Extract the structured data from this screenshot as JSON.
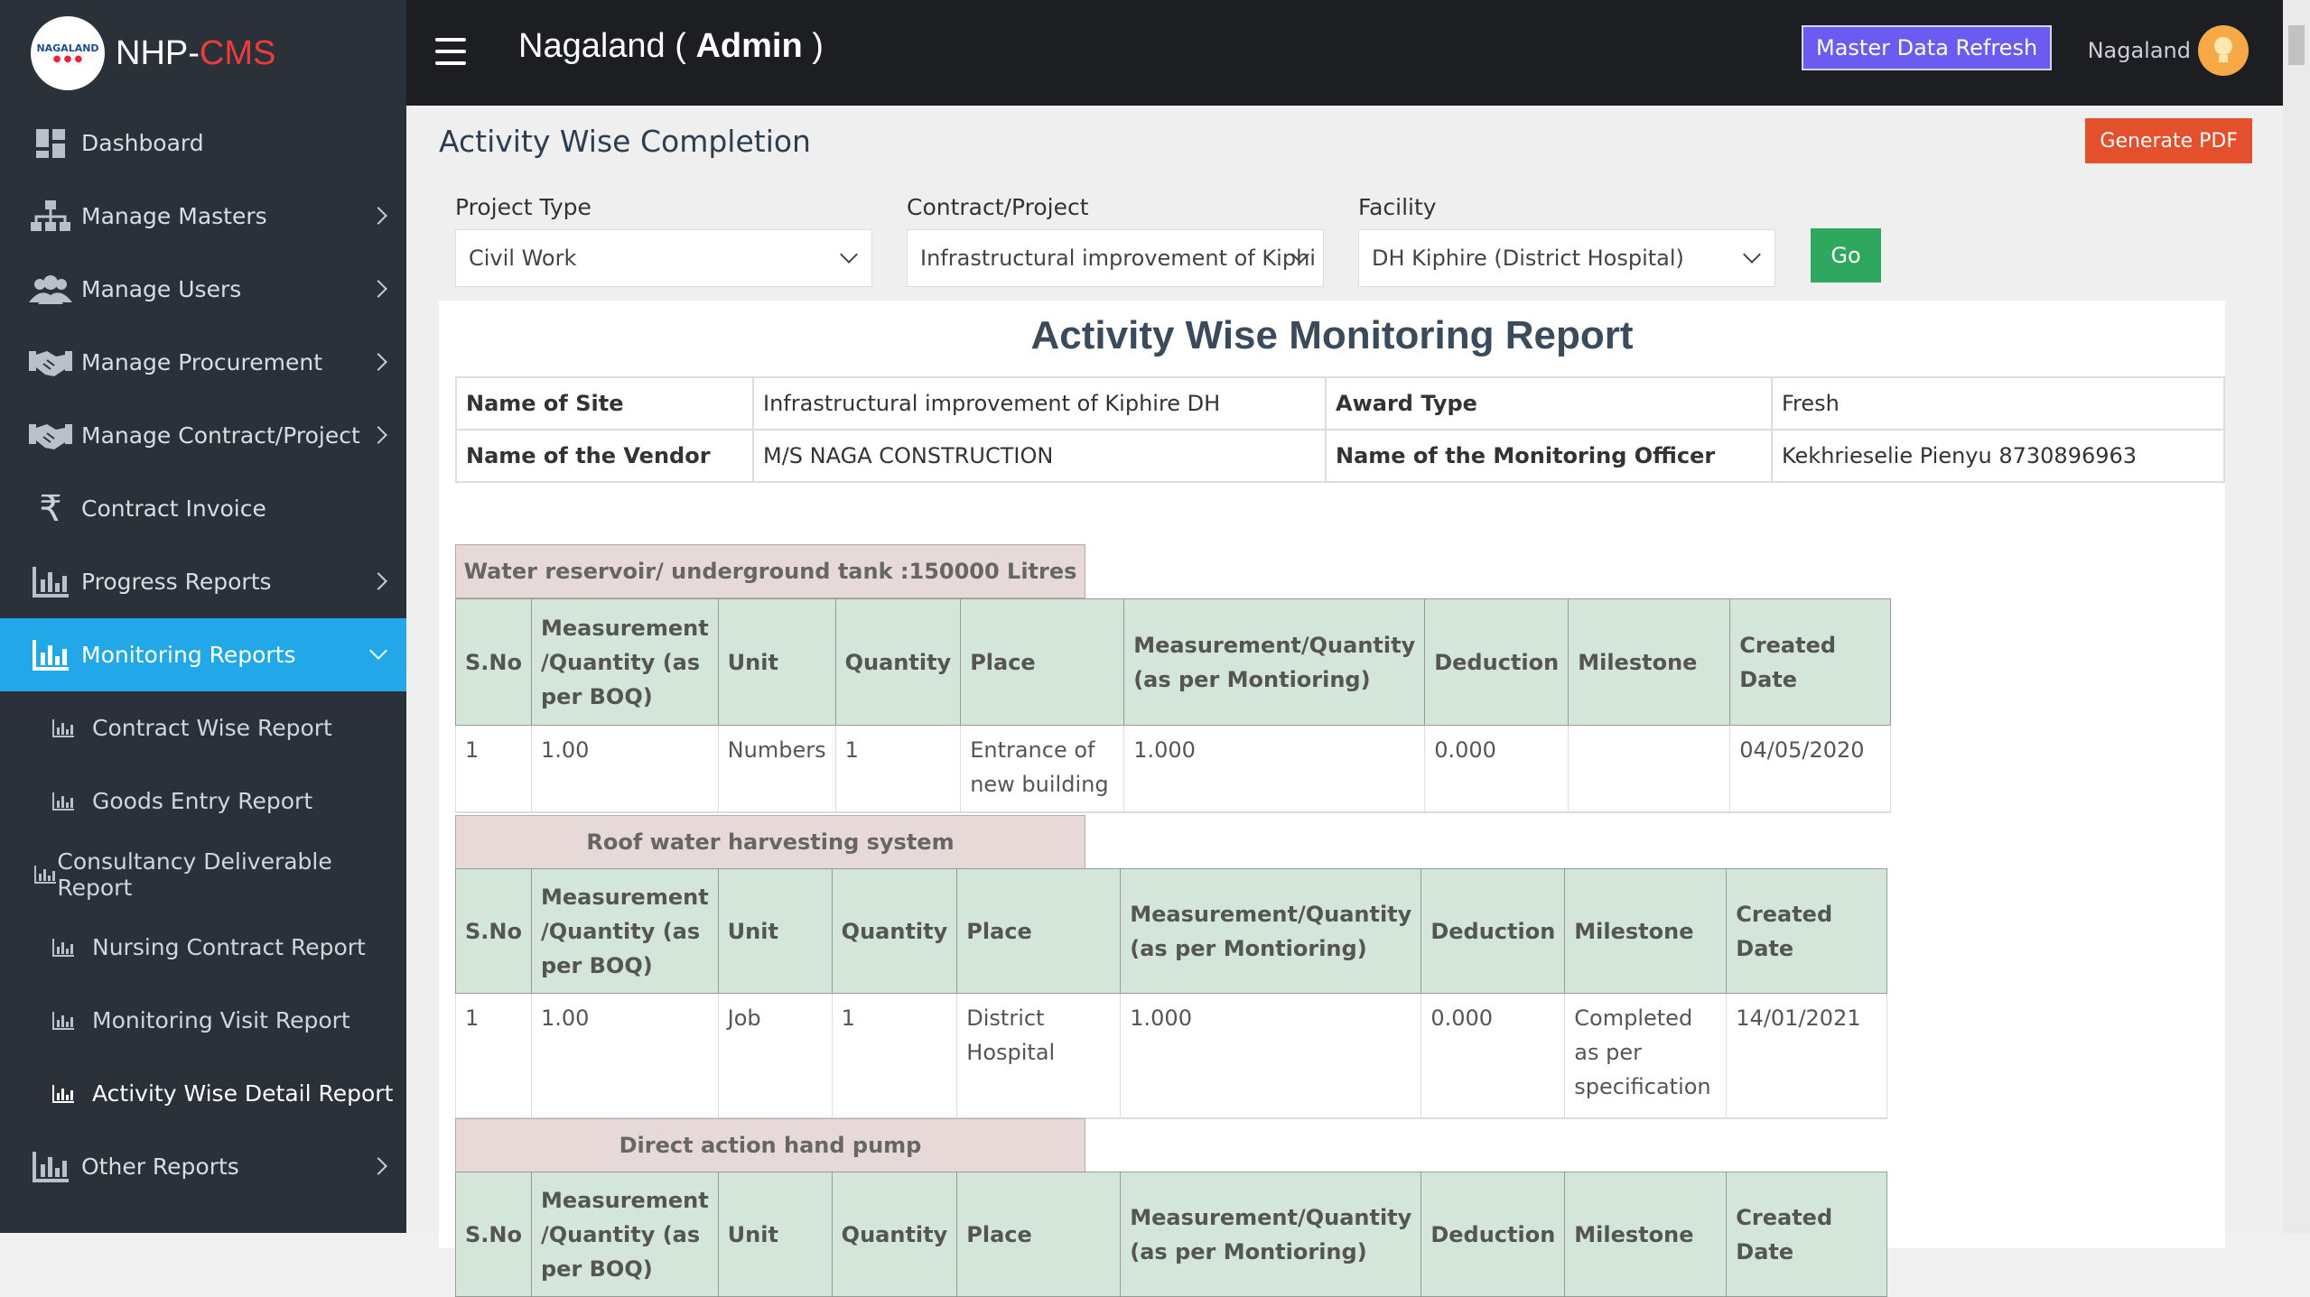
{
  "sidebar": {
    "brand_prefix": "NHP-",
    "brand_accent": "CMS",
    "logo_text": "NAGALAND",
    "items": [
      {
        "label": "Dashboard",
        "icon": "dashboard-icon"
      },
      {
        "label": "Manage Masters",
        "icon": "sitemap-icon"
      },
      {
        "label": "Manage Users",
        "icon": "users-icon"
      },
      {
        "label": "Manage Procurement",
        "icon": "handshake-icon"
      },
      {
        "label": "Manage Contract/Project",
        "icon": "handshake-icon"
      },
      {
        "label": "Contract Invoice",
        "icon": "rupee-icon"
      },
      {
        "label": "Progress Reports",
        "icon": "bar-chart-icon"
      },
      {
        "label": "Monitoring Reports",
        "icon": "bar-chart-icon"
      }
    ],
    "sub_items": [
      {
        "label": "Contract Wise Report"
      },
      {
        "label": "Goods Entry Report"
      },
      {
        "label": "Consultancy Deliverable Report"
      },
      {
        "label": "Nursing Contract Report"
      },
      {
        "label": "Monitoring Visit Report"
      },
      {
        "label": "Activity Wise Detail Report"
      }
    ],
    "other": {
      "label": "Other Reports"
    }
  },
  "topbar": {
    "title_state": "Nagaland ( ",
    "title_role": "Admin",
    "title_end": " )",
    "refresh_label": "Master Data Refresh",
    "user_name": "Nagaland"
  },
  "page": {
    "title": "Activity Wise Completion",
    "pdf_label": "Generate PDF",
    "go_label": "Go"
  },
  "filters": [
    {
      "label": "Project Type",
      "value": "Civil Work"
    },
    {
      "label": "Contract/Project",
      "value": "Infrastructural improvement of Kiphi"
    },
    {
      "label": "Facility",
      "value": "DH Kiphire (District Hospital)"
    }
  ],
  "report": {
    "title": "Activity Wise Monitoring Report",
    "site_label": "Name of Site",
    "site_value": "Infrastructural improvement of Kiphire DH",
    "award_label": "Award Type",
    "award_value": "Fresh",
    "vendor_label": "Name of the Vendor",
    "vendor_value": "M/S NAGA CONSTRUCTION",
    "officer_label": "Name of the Monitoring Officer",
    "officer_value": "Kekhrieselie Pienyu 8730896963"
  },
  "columns": [
    "S.No",
    "Measurement /Quantity (as per BOQ)",
    "Unit",
    "Quantity",
    "Place",
    "Measurement/Quantity (as per Montioring)",
    "Deduction",
    "Milestone",
    "Created Date"
  ],
  "sections": [
    {
      "title": "Water reservoir/ underground tank :150000 Litres",
      "row": [
        "1",
        "1.00",
        "Numbers",
        "1",
        "Entrance of new building",
        "1.000",
        "0.000",
        "",
        "04/05/2020"
      ]
    },
    {
      "title": "Roof water harvesting system",
      "row": [
        "1",
        "1.00",
        "Job",
        "1",
        "District Hospital",
        "1.000",
        "0.000",
        "Completed as per specification",
        "14/01/2021"
      ]
    },
    {
      "title": "Direct action hand pump",
      "row": []
    }
  ]
}
